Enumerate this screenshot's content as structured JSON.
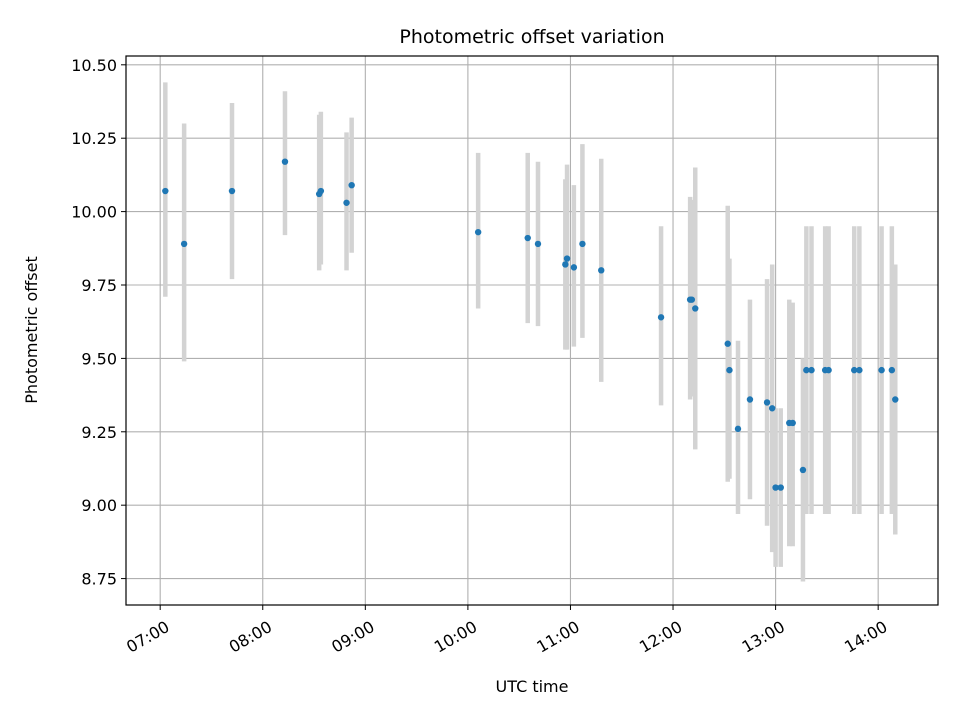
{
  "chart_data": {
    "type": "scatter",
    "title": "Photometric offset variation",
    "xlabel": "UTC time",
    "ylabel": "Photometric offset",
    "x_ticks": [
      "07:00",
      "08:00",
      "09:00",
      "10:00",
      "11:00",
      "12:00",
      "13:00",
      "14:00"
    ],
    "x_tick_hours": [
      7,
      8,
      9,
      10,
      11,
      12,
      13,
      14
    ],
    "y_ticks": [
      "8.75",
      "9.00",
      "9.25",
      "9.50",
      "9.75",
      "10.00",
      "10.25",
      "10.50"
    ],
    "y_tick_values": [
      8.75,
      9.0,
      9.25,
      9.5,
      9.75,
      10.0,
      10.25,
      10.5
    ],
    "xlim": [
      "06:40",
      "14:35"
    ],
    "ylim": [
      8.66,
      10.53
    ],
    "grid": true,
    "colors": {
      "point": "#1f77b4",
      "errorbar": "#d3d3d3",
      "grid": "#b0b0b0"
    },
    "points": [
      {
        "t": "07:03",
        "y": 10.07,
        "lo": 9.71,
        "hi": 10.44
      },
      {
        "t": "07:14",
        "y": 9.89,
        "lo": 9.49,
        "hi": 10.3
      },
      {
        "t": "07:42",
        "y": 10.07,
        "lo": 9.77,
        "hi": 10.37
      },
      {
        "t": "08:13",
        "y": 10.17,
        "lo": 9.92,
        "hi": 10.41
      },
      {
        "t": "08:33",
        "y": 10.06,
        "lo": 9.8,
        "hi": 10.33
      },
      {
        "t": "08:34",
        "y": 10.07,
        "lo": 9.82,
        "hi": 10.34
      },
      {
        "t": "08:49",
        "y": 10.03,
        "lo": 9.8,
        "hi": 10.27
      },
      {
        "t": "08:52",
        "y": 10.09,
        "lo": 9.86,
        "hi": 10.32
      },
      {
        "t": "10:06",
        "y": 9.93,
        "lo": 9.67,
        "hi": 10.2
      },
      {
        "t": "10:35",
        "y": 9.91,
        "lo": 9.62,
        "hi": 10.2
      },
      {
        "t": "10:41",
        "y": 9.89,
        "lo": 9.61,
        "hi": 10.17
      },
      {
        "t": "10:57",
        "y": 9.82,
        "lo": 9.53,
        "hi": 10.11
      },
      {
        "t": "10:58",
        "y": 9.84,
        "lo": 9.53,
        "hi": 10.16
      },
      {
        "t": "11:02",
        "y": 9.81,
        "lo": 9.54,
        "hi": 10.09
      },
      {
        "t": "11:07",
        "y": 9.89,
        "lo": 9.57,
        "hi": 10.23
      },
      {
        "t": "11:18",
        "y": 9.8,
        "lo": 9.42,
        "hi": 10.18
      },
      {
        "t": "11:53",
        "y": 9.64,
        "lo": 9.34,
        "hi": 9.95
      },
      {
        "t": "12:10",
        "y": 9.7,
        "lo": 9.36,
        "hi": 10.05
      },
      {
        "t": "12:11",
        "y": 9.7,
        "lo": 9.37,
        "hi": 10.04
      },
      {
        "t": "12:13",
        "y": 9.67,
        "lo": 9.19,
        "hi": 10.15
      },
      {
        "t": "12:32",
        "y": 9.55,
        "lo": 9.08,
        "hi": 10.02
      },
      {
        "t": "12:33",
        "y": 9.46,
        "lo": 9.09,
        "hi": 9.84
      },
      {
        "t": "12:38",
        "y": 9.26,
        "lo": 8.97,
        "hi": 9.56
      },
      {
        "t": "12:45",
        "y": 9.36,
        "lo": 9.02,
        "hi": 9.7
      },
      {
        "t": "12:55",
        "y": 9.35,
        "lo": 8.93,
        "hi": 9.77
      },
      {
        "t": "12:58",
        "y": 9.33,
        "lo": 8.84,
        "hi": 9.82
      },
      {
        "t": "13:00",
        "y": 9.06,
        "lo": 8.79,
        "hi": 9.33
      },
      {
        "t": "13:03",
        "y": 9.06,
        "lo": 8.79,
        "hi": 9.33
      },
      {
        "t": "13:08",
        "y": 9.28,
        "lo": 8.86,
        "hi": 9.7
      },
      {
        "t": "13:10",
        "y": 9.28,
        "lo": 8.86,
        "hi": 9.69
      },
      {
        "t": "13:16",
        "y": 9.12,
        "lo": 8.74,
        "hi": 9.5
      },
      {
        "t": "13:18",
        "y": 9.46,
        "lo": 8.97,
        "hi": 9.95
      },
      {
        "t": "13:21",
        "y": 9.46,
        "lo": 8.97,
        "hi": 9.95
      },
      {
        "t": "13:29",
        "y": 9.46,
        "lo": 8.97,
        "hi": 9.95
      },
      {
        "t": "13:31",
        "y": 9.46,
        "lo": 8.97,
        "hi": 9.95
      },
      {
        "t": "13:46",
        "y": 9.46,
        "lo": 8.97,
        "hi": 9.95
      },
      {
        "t": "13:49",
        "y": 9.46,
        "lo": 8.97,
        "hi": 9.95
      },
      {
        "t": "14:02",
        "y": 9.46,
        "lo": 8.97,
        "hi": 9.95
      },
      {
        "t": "14:08",
        "y": 9.46,
        "lo": 8.97,
        "hi": 9.95
      },
      {
        "t": "14:10",
        "y": 9.36,
        "lo": 8.9,
        "hi": 9.82
      }
    ]
  }
}
